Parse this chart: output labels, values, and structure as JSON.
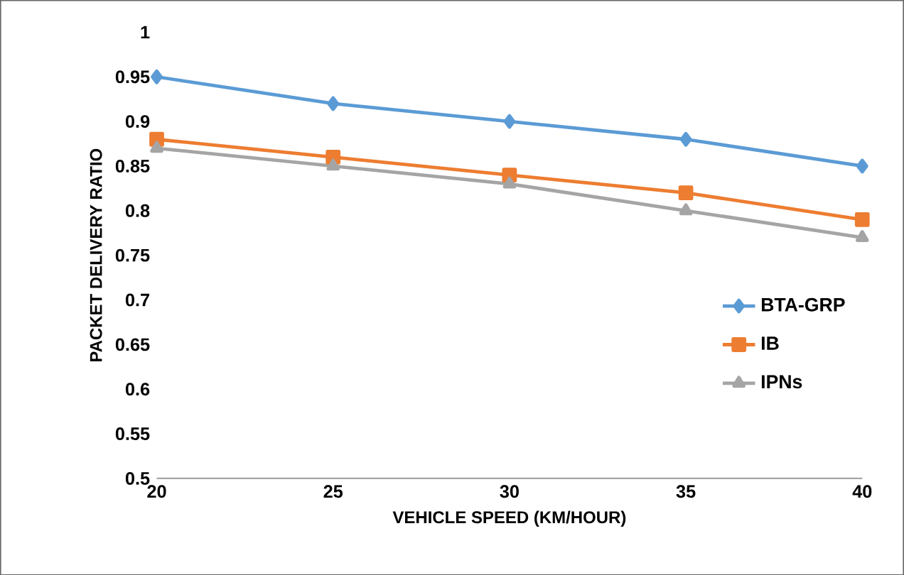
{
  "chart_data": {
    "type": "line",
    "xlabel": "VEHICLE SPEED (KM/HOUR)",
    "ylabel": "PACKET DELIVERY RATIO",
    "x": [
      20,
      25,
      30,
      35,
      40
    ],
    "series": [
      {
        "name": "BTA-GRP",
        "color": "#5b9bd5",
        "marker": "diamond",
        "values": [
          0.95,
          0.92,
          0.9,
          0.88,
          0.85
        ]
      },
      {
        "name": "IB",
        "color": "#ed7d31",
        "marker": "square",
        "values": [
          0.88,
          0.86,
          0.84,
          0.82,
          0.79
        ]
      },
      {
        "name": "IPNs",
        "color": "#a5a5a5",
        "marker": "triangle",
        "values": [
          0.87,
          0.85,
          0.83,
          0.8,
          0.77
        ]
      }
    ],
    "xlim": [
      20,
      40
    ],
    "xticks": [
      20,
      25,
      30,
      35,
      40
    ],
    "ylim": [
      0.5,
      1
    ],
    "yticks": [
      0.5,
      0.55,
      0.6,
      0.65,
      0.7,
      0.75,
      0.8,
      0.85,
      0.9,
      0.95,
      1
    ],
    "grid": false,
    "legend": "right",
    "line_style": "solid"
  }
}
